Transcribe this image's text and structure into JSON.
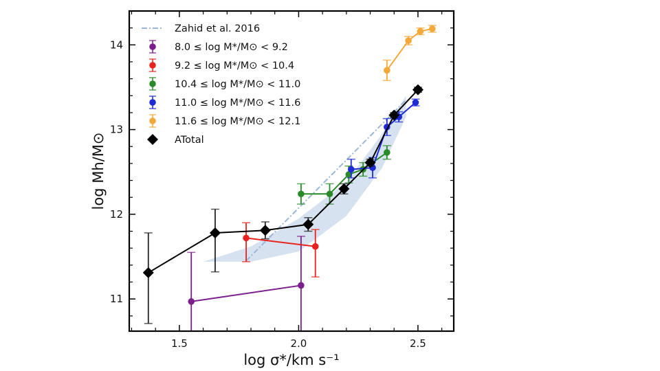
{
  "chart_data": {
    "type": "scatter",
    "title": "",
    "xlabel": "log σ*/km s⁻¹",
    "ylabel": "log Mh/M⊙",
    "xlim": [
      1.29,
      2.65
    ],
    "ylim": [
      10.62,
      14.4
    ],
    "xticks": [
      {
        "value": 1.5,
        "label": "1.5"
      },
      {
        "value": 2.0,
        "label": "2.0"
      },
      {
        "value": 2.5,
        "label": "2.5"
      }
    ],
    "yticks": [
      {
        "value": 11,
        "label": "11"
      },
      {
        "value": 12,
        "label": "12"
      },
      {
        "value": 13,
        "label": "13"
      },
      {
        "value": 14,
        "label": "14"
      }
    ],
    "grid": false,
    "legend_position": "top-left",
    "reference": {
      "name": "Zahid et al. 2016",
      "color": "#9ab7d8",
      "band_color": "#d7e2f0",
      "line": [
        [
          1.78,
          11.45
        ],
        [
          2.45,
          13.35
        ]
      ],
      "band_upper": [
        [
          1.6,
          11.44
        ],
        [
          1.8,
          11.62
        ],
        [
          2.0,
          11.95
        ],
        [
          2.2,
          12.38
        ],
        [
          2.35,
          12.95
        ],
        [
          2.45,
          13.4
        ]
      ],
      "band_lower": [
        [
          2.45,
          13.15
        ],
        [
          2.35,
          12.55
        ],
        [
          2.2,
          11.98
        ],
        [
          2.0,
          11.56
        ],
        [
          1.8,
          11.44
        ],
        [
          1.6,
          11.44
        ]
      ]
    },
    "series": [
      {
        "name": "8.0 ≤ log M*/M⊙ < 9.2",
        "color": "#7b1f8c",
        "marker": "circle",
        "points": [
          {
            "x": 1.55,
            "y": 10.97,
            "err_low": 0.6,
            "err_high": 0.58
          },
          {
            "x": 2.01,
            "y": 11.16,
            "err_low": 0.6,
            "err_high": 0.58
          }
        ]
      },
      {
        "name": "9.2 ≤ log M*/M⊙ < 10.4",
        "color": "#e8231f",
        "marker": "circle",
        "points": [
          {
            "x": 1.78,
            "y": 11.72,
            "err_low": 0.28,
            "err_high": 0.18
          },
          {
            "x": 2.07,
            "y": 11.62,
            "err_low": 0.36,
            "err_high": 0.2
          }
        ]
      },
      {
        "name": "10.4 ≤ log M*/M⊙ < 11.0",
        "color": "#2a8a2a",
        "marker": "circle",
        "points": [
          {
            "x": 2.01,
            "y": 12.24,
            "err_low": 0.12,
            "err_high": 0.12
          },
          {
            "x": 2.13,
            "y": 12.24,
            "err_low": 0.12,
            "err_high": 0.12
          },
          {
            "x": 2.21,
            "y": 12.47,
            "err_low": 0.1,
            "err_high": 0.1
          },
          {
            "x": 2.27,
            "y": 12.53,
            "err_low": 0.08,
            "err_high": 0.08
          },
          {
            "x": 2.37,
            "y": 12.73,
            "err_low": 0.08,
            "err_high": 0.08
          }
        ]
      },
      {
        "name": "11.0 ≤ log M*/M⊙ < 11.6",
        "color": "#1d2bd6",
        "marker": "circle",
        "points": [
          {
            "x": 2.22,
            "y": 12.53,
            "err_low": 0.1,
            "err_high": 0.12
          },
          {
            "x": 2.31,
            "y": 12.55,
            "err_low": 0.12,
            "err_high": 0.12
          },
          {
            "x": 2.37,
            "y": 13.03,
            "err_low": 0.1,
            "err_high": 0.1
          },
          {
            "x": 2.42,
            "y": 13.15,
            "err_low": 0.06,
            "err_high": 0.06
          },
          {
            "x": 2.49,
            "y": 13.32,
            "err_low": 0.04,
            "err_high": 0.04
          }
        ]
      },
      {
        "name": "11.6 ≤ log M*/M⊙ < 12.1",
        "color": "#f4a83a",
        "marker": "circle",
        "points": [
          {
            "x": 2.37,
            "y": 13.7,
            "err_low": 0.12,
            "err_high": 0.12
          },
          {
            "x": 2.46,
            "y": 14.05,
            "err_low": 0.05,
            "err_high": 0.05
          },
          {
            "x": 2.51,
            "y": 14.16,
            "err_low": 0.04,
            "err_high": 0.04
          },
          {
            "x": 2.56,
            "y": 14.19,
            "err_low": 0.04,
            "err_high": 0.04
          }
        ]
      },
      {
        "name": "ATotal",
        "color": "#000000",
        "marker": "diamond",
        "points": [
          {
            "x": 1.37,
            "y": 11.31,
            "err_low": 0.6,
            "err_high": 0.47
          },
          {
            "x": 1.65,
            "y": 11.78,
            "err_low": 0.46,
            "err_high": 0.28
          },
          {
            "x": 1.86,
            "y": 11.81,
            "err_low": 0.1,
            "err_high": 0.1
          },
          {
            "x": 2.04,
            "y": 11.88,
            "err_low": 0.08,
            "err_high": 0.08
          },
          {
            "x": 2.19,
            "y": 12.3,
            "err_low": 0.06,
            "err_high": 0.06
          },
          {
            "x": 2.3,
            "y": 12.61,
            "err_low": 0.04,
            "err_high": 0.04
          },
          {
            "x": 2.4,
            "y": 13.17,
            "err_low": 0.03,
            "err_high": 0.03
          },
          {
            "x": 2.5,
            "y": 13.47,
            "err_low": 0.03,
            "err_high": 0.03
          }
        ]
      }
    ]
  }
}
